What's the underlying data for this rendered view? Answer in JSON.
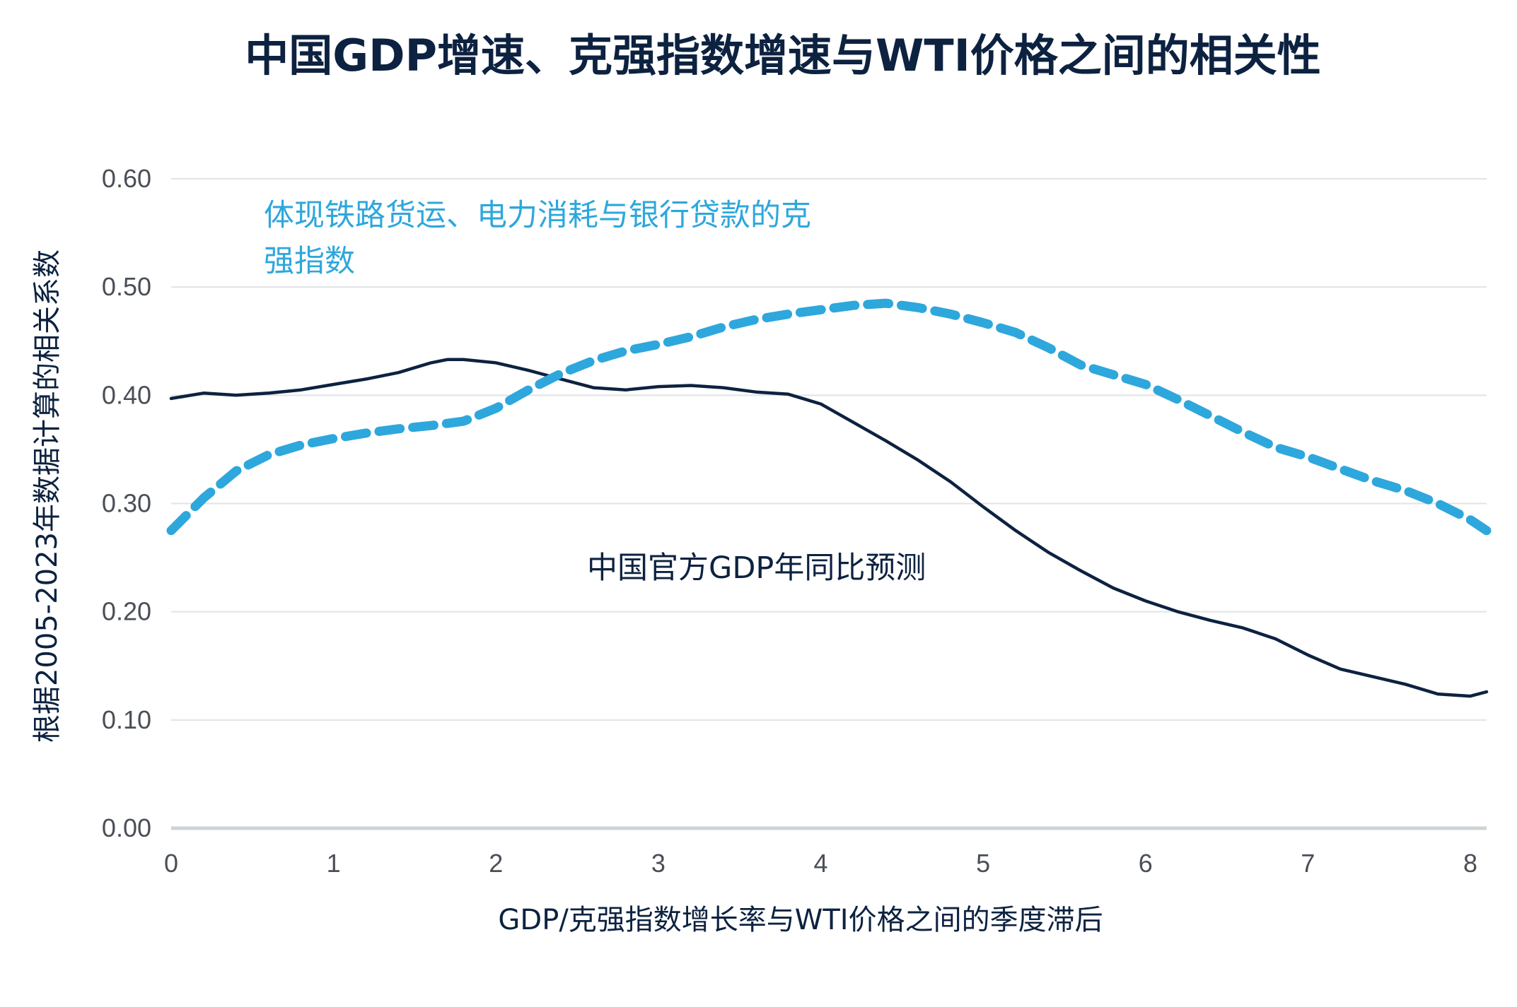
{
  "chart_data": {
    "type": "line",
    "title": "中国GDP增速、克强指数增速与WTI价格之间的相关性",
    "xlabel": "GDP/克强指数增长率与WTI价格之间的季度滞后",
    "ylabel": "根据2005-2023年数据计算的相关系数",
    "xlim": [
      0,
      8.1
    ],
    "ylim": [
      0,
      0.6
    ],
    "x_ticks": [
      0,
      1,
      2,
      3,
      4,
      5,
      6,
      7,
      8
    ],
    "x_tick_labels": [
      "0",
      "1",
      "2",
      "3",
      "4",
      "5",
      "6",
      "7",
      "8"
    ],
    "y_ticks": [
      0,
      0.1,
      0.2,
      0.3,
      0.4,
      0.5,
      0.6
    ],
    "y_tick_labels": [
      "0.00",
      "0.10",
      "0.20",
      "0.30",
      "0.40",
      "0.50",
      "0.60"
    ],
    "grid": "horizontal",
    "series": [
      {
        "name": "体现铁路货运、电力消耗与银行贷款的克强指数",
        "label_lines": [
          "体现铁路货运、电力消耗与银行贷款的克",
          "强指数"
        ],
        "style": "dashed",
        "color": "#2ea7dc",
        "points": [
          [
            0.0,
            0.275
          ],
          [
            0.2,
            0.305
          ],
          [
            0.4,
            0.33
          ],
          [
            0.6,
            0.345
          ],
          [
            0.8,
            0.354
          ],
          [
            1.0,
            0.36
          ],
          [
            1.2,
            0.365
          ],
          [
            1.4,
            0.369
          ],
          [
            1.6,
            0.372
          ],
          [
            1.8,
            0.376
          ],
          [
            2.0,
            0.388
          ],
          [
            2.2,
            0.405
          ],
          [
            2.4,
            0.42
          ],
          [
            2.6,
            0.432
          ],
          [
            2.8,
            0.441
          ],
          [
            3.0,
            0.447
          ],
          [
            3.2,
            0.454
          ],
          [
            3.4,
            0.463
          ],
          [
            3.6,
            0.47
          ],
          [
            3.8,
            0.475
          ],
          [
            4.0,
            0.479
          ],
          [
            4.2,
            0.483
          ],
          [
            4.4,
            0.485
          ],
          [
            4.6,
            0.481
          ],
          [
            4.8,
            0.475
          ],
          [
            5.0,
            0.467
          ],
          [
            5.2,
            0.458
          ],
          [
            5.4,
            0.444
          ],
          [
            5.6,
            0.428
          ],
          [
            5.8,
            0.419
          ],
          [
            6.0,
            0.41
          ],
          [
            6.2,
            0.396
          ],
          [
            6.4,
            0.381
          ],
          [
            6.6,
            0.366
          ],
          [
            6.8,
            0.352
          ],
          [
            7.0,
            0.343
          ],
          [
            7.2,
            0.332
          ],
          [
            7.4,
            0.321
          ],
          [
            7.6,
            0.312
          ],
          [
            7.8,
            0.3
          ],
          [
            8.0,
            0.285
          ],
          [
            8.1,
            0.275
          ]
        ]
      },
      {
        "name": "中国官方GDP年同比预测",
        "label_lines": [
          "中国官方GDP年同比预测"
        ],
        "style": "solid",
        "color": "#0d2240",
        "points": [
          [
            0.0,
            0.397
          ],
          [
            0.2,
            0.402
          ],
          [
            0.4,
            0.4
          ],
          [
            0.6,
            0.402
          ],
          [
            0.8,
            0.405
          ],
          [
            1.0,
            0.41
          ],
          [
            1.2,
            0.415
          ],
          [
            1.4,
            0.421
          ],
          [
            1.6,
            0.43
          ],
          [
            1.7,
            0.433
          ],
          [
            1.8,
            0.433
          ],
          [
            2.0,
            0.43
          ],
          [
            2.2,
            0.423
          ],
          [
            2.4,
            0.415
          ],
          [
            2.6,
            0.407
          ],
          [
            2.8,
            0.405
          ],
          [
            3.0,
            0.408
          ],
          [
            3.2,
            0.409
          ],
          [
            3.4,
            0.407
          ],
          [
            3.6,
            0.403
          ],
          [
            3.8,
            0.401
          ],
          [
            4.0,
            0.392
          ],
          [
            4.2,
            0.375
          ],
          [
            4.4,
            0.358
          ],
          [
            4.6,
            0.34
          ],
          [
            4.8,
            0.32
          ],
          [
            5.0,
            0.297
          ],
          [
            5.2,
            0.275
          ],
          [
            5.4,
            0.255
          ],
          [
            5.6,
            0.238
          ],
          [
            5.8,
            0.222
          ],
          [
            6.0,
            0.21
          ],
          [
            6.2,
            0.2
          ],
          [
            6.4,
            0.192
          ],
          [
            6.6,
            0.185
          ],
          [
            6.8,
            0.175
          ],
          [
            7.0,
            0.16
          ],
          [
            7.2,
            0.147
          ],
          [
            7.4,
            0.14
          ],
          [
            7.6,
            0.133
          ],
          [
            7.8,
            0.124
          ],
          [
            8.0,
            0.122
          ],
          [
            8.1,
            0.126
          ]
        ]
      }
    ]
  }
}
